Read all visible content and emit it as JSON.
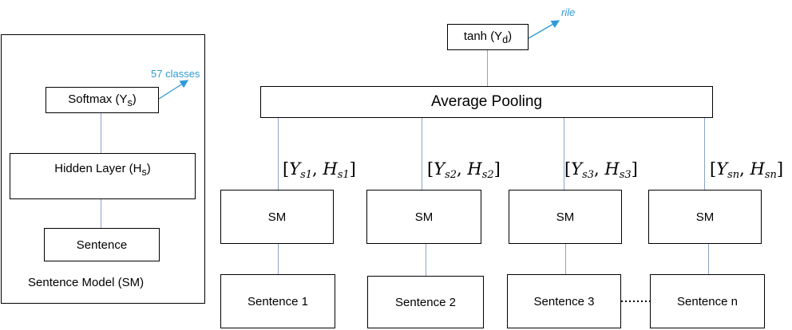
{
  "sentence_model": {
    "caption": "Sentence Model (SM)",
    "softmax": {
      "name": "Softmax (Y",
      "sub": "s",
      "close": ")"
    },
    "hidden": {
      "name": "Hidden Layer (H",
      "sub": "s",
      "close": ")"
    },
    "sentence": "Sentence",
    "classes_label": "57 classes"
  },
  "top": {
    "tanh": {
      "name": "tanh (Y",
      "sub": "d",
      "close": ")"
    },
    "output_label": "rile",
    "pooling": "Average Pooling"
  },
  "columns": [
    {
      "sm": "SM",
      "sentence": "Sentence 1",
      "y_sub": "s1",
      "h_sub": "s1"
    },
    {
      "sm": "SM",
      "sentence": "Sentence 2",
      "y_sub": "s2",
      "h_sub": "s2"
    },
    {
      "sm": "SM",
      "sentence": "Sentence 3",
      "y_sub": "s3",
      "h_sub": "s3"
    },
    {
      "sm": "SM",
      "sentence": "Sentence n",
      "y_sub": "sn",
      "h_sub": "sn"
    }
  ],
  "label_symbols": {
    "y": "Y",
    "h": "H"
  }
}
